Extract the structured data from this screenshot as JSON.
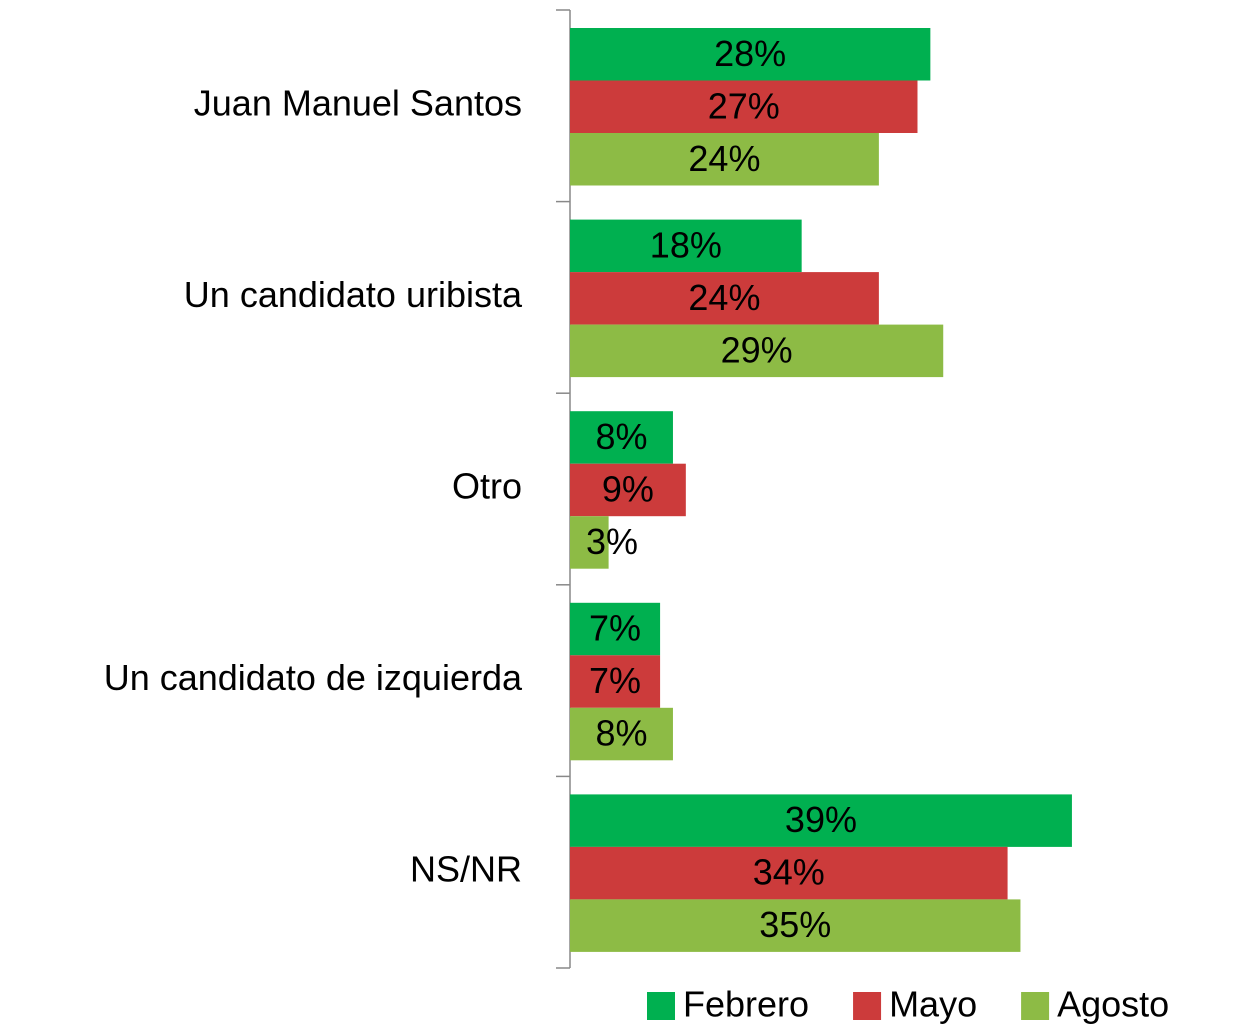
{
  "chart_data": {
    "type": "hbar",
    "categories": [
      "Juan Manuel Santos",
      "Un candidato uribista",
      "Otro",
      "Un candidato de izquierda",
      "NS/NR"
    ],
    "series": [
      {
        "name": "Febrero",
        "color": "#00b050",
        "values": [
          28,
          18,
          8,
          7,
          39
        ],
        "value_labels": [
          "28%",
          "18%",
          "8%",
          "7%",
          "39%"
        ]
      },
      {
        "name": "Mayo",
        "color": "#cc3b3b",
        "values": [
          27,
          24,
          9,
          7,
          34
        ],
        "value_labels": [
          "27%",
          "24%",
          "9%",
          "7%",
          "34%"
        ]
      },
      {
        "name": "Agosto",
        "color": "#8dbb45",
        "values": [
          24,
          29,
          3,
          8,
          35
        ],
        "value_labels": [
          "24%",
          "29%",
          "3%",
          "8%",
          "35%"
        ]
      }
    ],
    "legend": "bottom-right"
  }
}
